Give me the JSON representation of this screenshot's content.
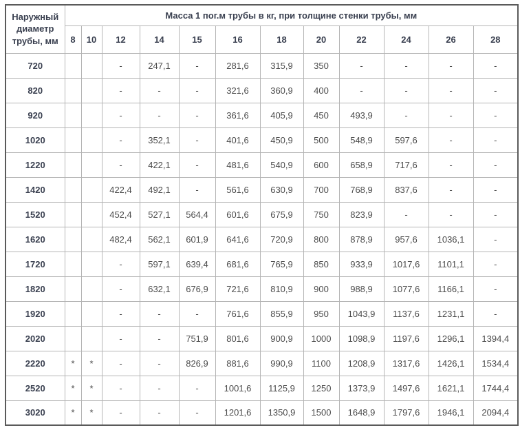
{
  "colors": {
    "header_text": "#3a4050",
    "cell_text": "#4c4c4c",
    "inner_border": "#b4b4b4",
    "outer_border": "#5a5a5a",
    "page_background": "#ffffff"
  },
  "table": {
    "corner_header": "Наружный диаметр трубы, мм",
    "span_header": "Масса 1 пог.м трубы в кг, при толщине стенки трубы, мм",
    "thickness_headers": [
      "8",
      "10",
      "12",
      "14",
      "15",
      "16",
      "18",
      "20",
      "22",
      "24",
      "26",
      "28"
    ],
    "rows": [
      {
        "diameter": "720",
        "values": [
          "",
          "",
          "-",
          "247,1",
          "-",
          "281,6",
          "315,9",
          "350",
          "-",
          "-",
          "-",
          "-"
        ]
      },
      {
        "diameter": "820",
        "values": [
          "",
          "",
          "-",
          "-",
          "-",
          "321,6",
          "360,9",
          "400",
          "-",
          "-",
          "-",
          "-"
        ]
      },
      {
        "diameter": "920",
        "values": [
          "",
          "",
          "-",
          "-",
          "-",
          "361,6",
          "405,9",
          "450",
          "493,9",
          "-",
          "-",
          "-"
        ]
      },
      {
        "diameter": "1020",
        "values": [
          "",
          "",
          "-",
          "352,1",
          "-",
          "401,6",
          "450,9",
          "500",
          "548,9",
          "597,6",
          "-",
          "-"
        ]
      },
      {
        "diameter": "1220",
        "values": [
          "",
          "",
          "-",
          "422,1",
          "-",
          "481,6",
          "540,9",
          "600",
          "658,9",
          "717,6",
          "-",
          "-"
        ]
      },
      {
        "diameter": "1420",
        "values": [
          "",
          "",
          "422,4",
          "492,1",
          "-",
          "561,6",
          "630,9",
          "700",
          "768,9",
          "837,6",
          "-",
          "-"
        ]
      },
      {
        "diameter": "1520",
        "values": [
          "",
          "",
          "452,4",
          "527,1",
          "564,4",
          "601,6",
          "675,9",
          "750",
          "823,9",
          "-",
          "-",
          "-"
        ]
      },
      {
        "diameter": "1620",
        "values": [
          "",
          "",
          "482,4",
          "562,1",
          "601,9",
          "641,6",
          "720,9",
          "800",
          "878,9",
          "957,6",
          "1036,1",
          "-"
        ]
      },
      {
        "diameter": "1720",
        "values": [
          "",
          "",
          "-",
          "597,1",
          "639,4",
          "681,6",
          "765,9",
          "850",
          "933,9",
          "1017,6",
          "1101,1",
          "-"
        ]
      },
      {
        "diameter": "1820",
        "values": [
          "",
          "",
          "-",
          "632,1",
          "676,9",
          "721,6",
          "810,9",
          "900",
          "988,9",
          "1077,6",
          "1166,1",
          "-"
        ]
      },
      {
        "diameter": "1920",
        "values": [
          "",
          "",
          "-",
          "-",
          "-",
          "761,6",
          "855,9",
          "950",
          "1043,9",
          "1137,6",
          "1231,1",
          "-"
        ]
      },
      {
        "diameter": "2020",
        "values": [
          "",
          "",
          "-",
          "-",
          "751,9",
          "801,6",
          "900,9",
          "1000",
          "1098,9",
          "1197,6",
          "1296,1",
          "1394,4"
        ]
      },
      {
        "diameter": "2220",
        "values": [
          "*",
          "*",
          "-",
          "-",
          "826,9",
          "881,6",
          "990,9",
          "1100",
          "1208,9",
          "1317,6",
          "1426,1",
          "1534,4"
        ]
      },
      {
        "diameter": "2520",
        "values": [
          "*",
          "*",
          "-",
          "-",
          "-",
          "1001,6",
          "1125,9",
          "1250",
          "1373,9",
          "1497,6",
          "1621,1",
          "1744,4"
        ]
      },
      {
        "diameter": "3020",
        "values": [
          "*",
          "*",
          "-",
          "-",
          "-",
          "1201,6",
          "1350,9",
          "1500",
          "1648,9",
          "1797,6",
          "1946,1",
          "2094,4"
        ]
      }
    ]
  }
}
